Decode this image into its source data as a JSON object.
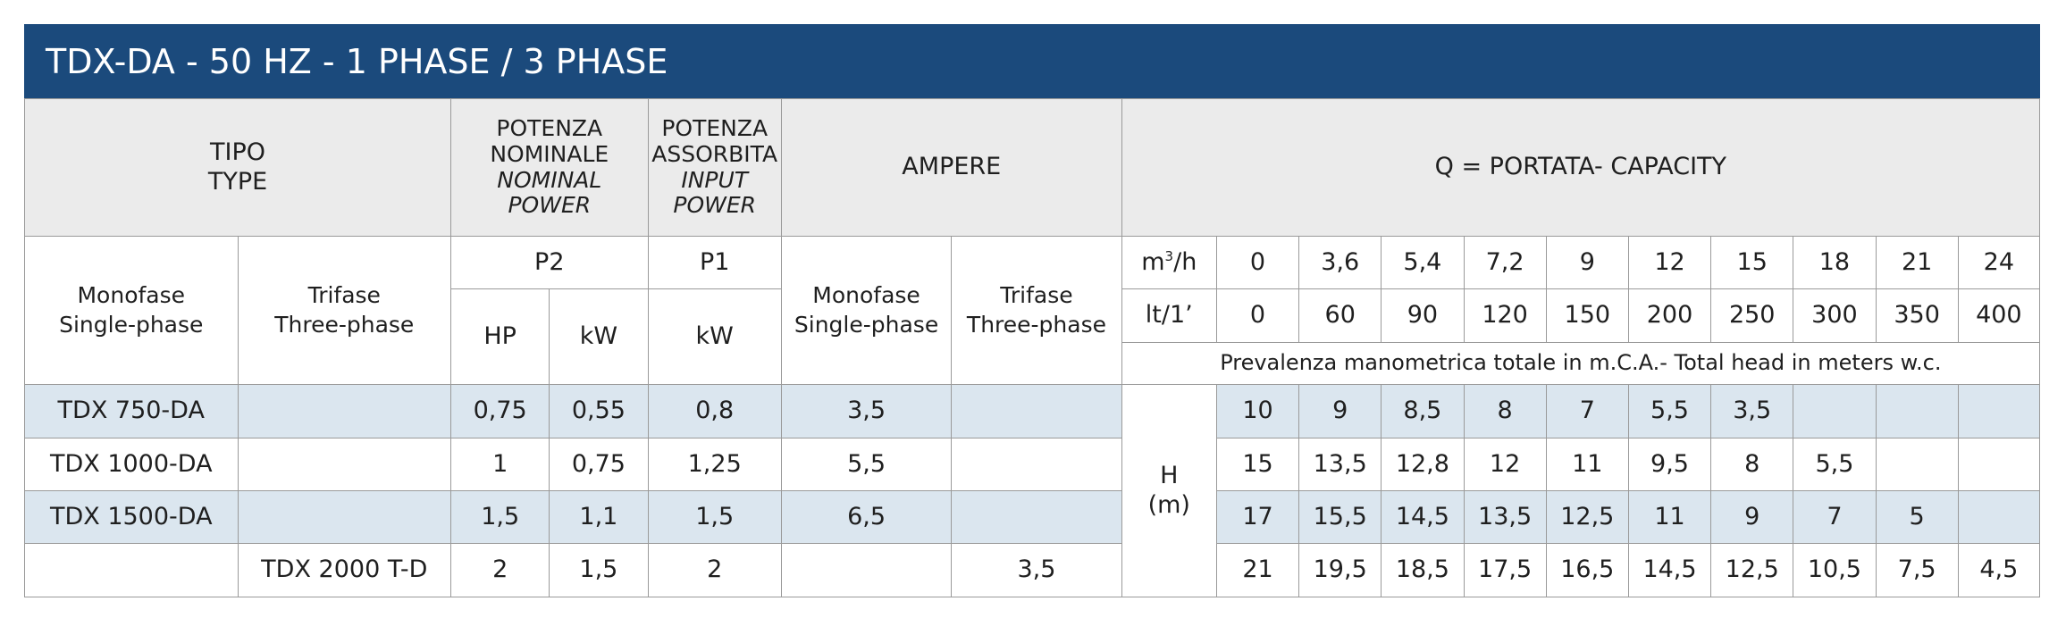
{
  "title": "TDX-DA - 50 HZ - 1 PHASE / 3 PHASE",
  "headers": {
    "tipo": "TIPO",
    "type": "TYPE",
    "potenza_nominale": "POTENZA",
    "nominale": "NOMINALE",
    "nominal": "NOMINAL",
    "power_1": "POWER",
    "potenza_assorbita": "POTENZA",
    "assorbita": "ASSORBITA",
    "input": "INPUT",
    "power_2": "POWER",
    "ampere": "AMPERE",
    "capacity": "Q = PORTATA- CAPACITY",
    "monofase": "Monofase",
    "single_phase": "Single-phase",
    "trifase": "Trifase",
    "three_phase": "Three-phase",
    "p2": "P2",
    "p1": "P1",
    "hp": "HP",
    "kw": "kW",
    "amp_monofase": "Monofase",
    "amp_single_phase": "Single-phase",
    "amp_trifase": "Trifase",
    "amp_three_phase": "Three-phase",
    "m3h_unit": "m",
    "m3h_exp": "3",
    "m3h_rest": "/h",
    "lt_unit": "lt/1’",
    "head_note": "Prevalenza manometrica totale in m.C.A.- Total head in meters w.c.",
    "h_label": "H",
    "h_unit": "(m)"
  },
  "flow_m3h": [
    "0",
    "3,6",
    "5,4",
    "7,2",
    "9",
    "12",
    "15",
    "18",
    "21",
    "24"
  ],
  "flow_lt": [
    "0",
    "60",
    "90",
    "120",
    "150",
    "200",
    "250",
    "300",
    "350",
    "400"
  ],
  "rows": [
    {
      "mono": "TDX 750-DA",
      "tri": "",
      "hp": "0,75",
      "kw2": "0,55",
      "kw1": "0,8",
      "amp_mono": "3,5",
      "amp_tri": "",
      "head": [
        "10",
        "9",
        "8,5",
        "8",
        "7",
        "5,5",
        "3,5",
        "",
        "",
        ""
      ]
    },
    {
      "mono": "TDX 1000-DA",
      "tri": "",
      "hp": "1",
      "kw2": "0,75",
      "kw1": "1,25",
      "amp_mono": "5,5",
      "amp_tri": "",
      "head": [
        "15",
        "13,5",
        "12,8",
        "12",
        "11",
        "9,5",
        "8",
        "5,5",
        "",
        ""
      ]
    },
    {
      "mono": "TDX 1500-DA",
      "tri": "",
      "hp": "1,5",
      "kw2": "1,1",
      "kw1": "1,5",
      "amp_mono": "6,5",
      "amp_tri": "",
      "head": [
        "17",
        "15,5",
        "14,5",
        "13,5",
        "12,5",
        "11",
        "9",
        "7",
        "5",
        ""
      ]
    },
    {
      "mono": "",
      "tri": "TDX 2000 T-D",
      "hp": "2",
      "kw2": "1,5",
      "kw1": "2",
      "amp_mono": "",
      "amp_tri": "3,5",
      "head": [
        "21",
        "19,5",
        "18,5",
        "17,5",
        "16,5",
        "14,5",
        "12,5",
        "10,5",
        "7,5",
        "4,5"
      ]
    }
  ]
}
